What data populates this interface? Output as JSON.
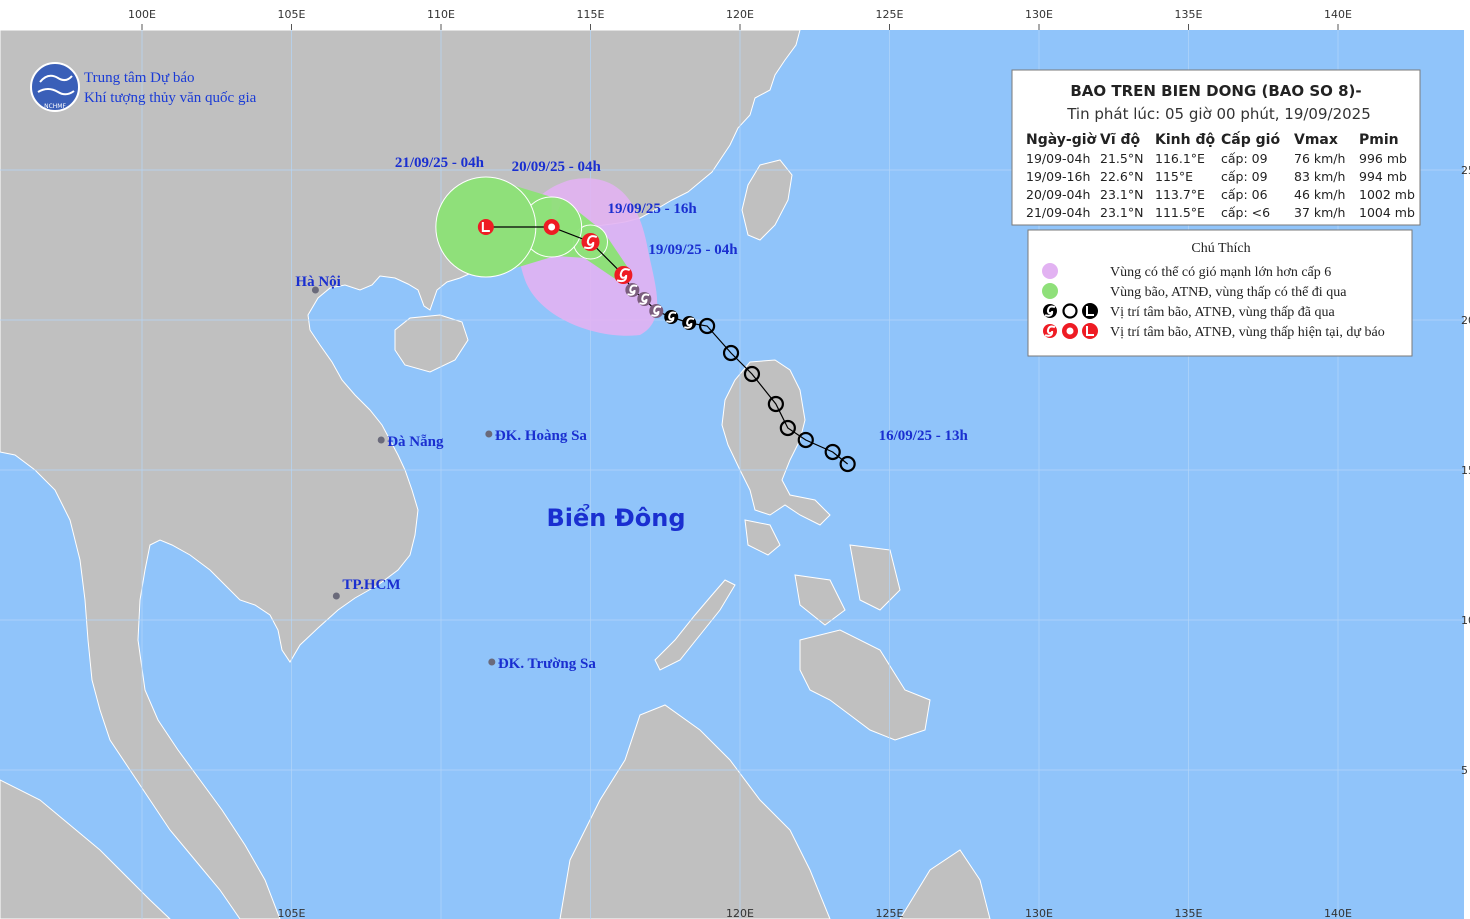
{
  "header": {
    "org_line1": "Trung tâm Dự báo",
    "org_line2": "Khí tượng thủy văn quốc gia",
    "logo_text": "NCHMF"
  },
  "axes": {
    "top_lon": [
      {
        "value": 100,
        "label": "100E"
      },
      {
        "value": 105,
        "label": "105E"
      },
      {
        "value": 110,
        "label": "110E"
      },
      {
        "value": 115,
        "label": "115E"
      },
      {
        "value": 120,
        "label": "120E"
      },
      {
        "value": 125,
        "label": "125E"
      },
      {
        "value": 130,
        "label": "130E"
      },
      {
        "value": 135,
        "label": "135E"
      },
      {
        "value": 140,
        "label": "140E"
      }
    ],
    "bottom_lon": [
      {
        "value": 105,
        "label": "105E"
      },
      {
        "value": 120,
        "label": "120E"
      },
      {
        "value": 125,
        "label": "125E"
      },
      {
        "value": 130,
        "label": "130E"
      },
      {
        "value": 135,
        "label": "135E"
      },
      {
        "value": 140,
        "label": "140E"
      }
    ],
    "lat": [
      25,
      20,
      15,
      10,
      5
    ]
  },
  "places": [
    {
      "label": "Hà Nội",
      "lon": 105.8,
      "lat": 21.0
    },
    {
      "label": "Đà Nẵng",
      "lon": 108.0,
      "lat": 16.0
    },
    {
      "label": "ĐK. Hoàng Sa",
      "lon": 111.6,
      "lat": 16.2
    },
    {
      "label": "TP.HCM",
      "lon": 106.5,
      "lat": 10.8
    },
    {
      "label": "ĐK. Trường Sa",
      "lon": 111.7,
      "lat": 8.6
    }
  ],
  "sea_label": "Biển Đông",
  "track": {
    "start_label": "16/09/25 - 13h",
    "past": [
      {
        "lon": 123.6,
        "lat": 15.2,
        "marker": "circle",
        "color": "#000000"
      },
      {
        "lon": 123.1,
        "lat": 15.6,
        "marker": "circle",
        "color": "#000000"
      },
      {
        "lon": 122.2,
        "lat": 16.0,
        "marker": "circle",
        "color": "#000000"
      },
      {
        "lon": 121.6,
        "lat": 16.4,
        "marker": "circle",
        "color": "#000000"
      },
      {
        "lon": 121.2,
        "lat": 17.2,
        "marker": "circle",
        "color": "#000000"
      },
      {
        "lon": 120.4,
        "lat": 18.2,
        "marker": "circle",
        "color": "#000000"
      },
      {
        "lon": 119.7,
        "lat": 18.9,
        "marker": "circle",
        "color": "#000000"
      },
      {
        "lon": 118.9,
        "lat": 19.8,
        "marker": "circle",
        "color": "#000000"
      },
      {
        "lon": 118.3,
        "lat": 19.9,
        "marker": "spiral",
        "color": "#000000"
      },
      {
        "lon": 117.7,
        "lat": 20.1,
        "marker": "spiral",
        "color": "#000000"
      },
      {
        "lon": 117.2,
        "lat": 20.3,
        "marker": "spiral",
        "color": "#7b5d7e"
      },
      {
        "lon": 116.8,
        "lat": 20.7,
        "marker": "spiral",
        "color": "#7b5d7e"
      },
      {
        "lon": 116.4,
        "lat": 21.0,
        "marker": "spiral",
        "color": "#7b5d7e"
      }
    ],
    "forecast": [
      {
        "lon": 116.1,
        "lat": 21.5,
        "marker": "spiral",
        "label": "19/09/25 - 04h"
      },
      {
        "lon": 115.0,
        "lat": 22.6,
        "marker": "spiral",
        "label": "19/09/25 - 16h"
      },
      {
        "lon": 113.7,
        "lat": 23.1,
        "marker": "circle",
        "label": "20/09/25 - 04h"
      },
      {
        "lon": 111.5,
        "lat": 23.1,
        "marker": "low",
        "label": "21/09/25 - 04h"
      }
    ]
  },
  "info_box": {
    "title": "BAO TREN BIEN DONG (BAO SO 8)-",
    "subtitle": "Tin phát lúc: 05 giờ 00 phút, 19/09/2025",
    "header": [
      "Ngày-giờ",
      "Vĩ độ",
      "Kinh độ",
      "Cấp gió",
      "Vmax",
      "Pmin"
    ],
    "rows": [
      [
        "19/09-04h",
        "21.5°N",
        "116.1°E",
        "cấp: 09",
        "76 km/h",
        "996 mb"
      ],
      [
        "19/09-16h",
        "22.6°N",
        "115°E",
        "cấp: 09",
        "83 km/h",
        "994 mb"
      ],
      [
        "20/09-04h",
        "23.1°N",
        "113.7°E",
        "cấp: 06",
        "46 km/h",
        "1002 mb"
      ],
      [
        "21/09-04h",
        "23.1°N",
        "111.5°E",
        "cấp: <6",
        "37 km/h",
        "1004 mb"
      ]
    ]
  },
  "legend": {
    "title": "Chú Thích",
    "items": [
      "Vùng có thể có gió mạnh lớn hơn cấp 6",
      "Vùng bão, ATNĐ, vùng thấp có thể đi qua",
      "Vị trí tâm bão, ATNĐ, vùng thấp đã qua",
      "Vị trí tâm bão, ATNĐ, vùng thấp hiện tại, dự báo"
    ]
  }
}
